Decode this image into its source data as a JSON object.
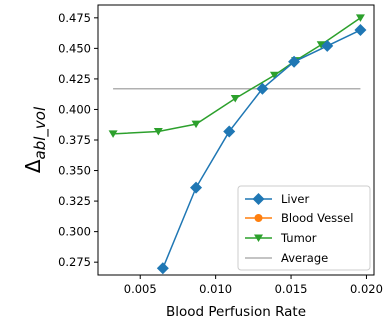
{
  "chart_data": {
    "type": "line",
    "title": "",
    "xlabel": "Blood Perfusion Rate",
    "ylabel_main": "Δ",
    "ylabel_sub": "abl_vol",
    "xlim": [
      0.0022,
      0.0205
    ],
    "ylim": [
      0.2645,
      0.4855
    ],
    "xticks": [
      0.005,
      0.01,
      0.015,
      0.02
    ],
    "xtick_labels": [
      "0.005",
      "0.010",
      "0.015",
      "0.020"
    ],
    "yticks": [
      0.275,
      0.3,
      0.325,
      0.35,
      0.375,
      0.4,
      0.425,
      0.45,
      0.475
    ],
    "ytick_labels": [
      "0.275",
      "0.300",
      "0.325",
      "0.350",
      "0.375",
      "0.400",
      "0.425",
      "0.450",
      "0.475"
    ],
    "grid": false,
    "legend_position": "lower-right",
    "series": [
      {
        "name": "Liver",
        "color": "#1f77b4",
        "marker": "diamond",
        "x": [
          0.0065,
          0.0087,
          0.0109,
          0.0131,
          0.0152,
          0.0174,
          0.0196
        ],
        "y": [
          0.27,
          0.336,
          0.382,
          0.417,
          0.439,
          0.452,
          0.465
        ]
      },
      {
        "name": "Blood Vessel",
        "color": "#ff7f0e",
        "marker": "circle",
        "x": [],
        "y": []
      },
      {
        "name": "Tumor",
        "color": "#2ca02c",
        "marker": "triangle-down",
        "x": [
          0.0032,
          0.0062,
          0.0087,
          0.0113,
          0.0139,
          0.0153,
          0.017,
          0.0196
        ],
        "y": [
          0.38,
          0.382,
          0.388,
          0.409,
          0.428,
          0.44,
          0.453,
          0.475
        ]
      },
      {
        "name": "Average",
        "color": "#b0b0b0",
        "marker": "none",
        "x": [
          0.0032,
          0.0196
        ],
        "y": [
          0.417,
          0.417
        ]
      }
    ]
  }
}
